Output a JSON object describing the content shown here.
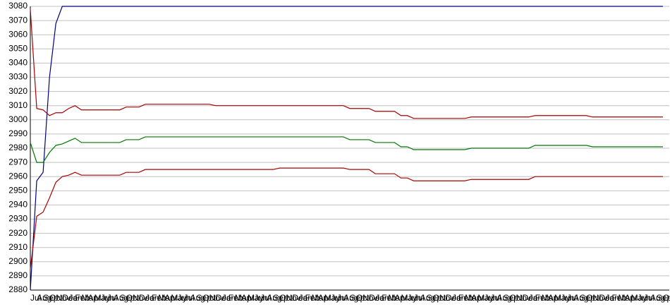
{
  "chart_data": {
    "type": "line",
    "categories": [
      "Jul",
      "Aug",
      "Sep",
      "Oct",
      "Nov",
      "Dec",
      "Jan",
      "Feb",
      "Mar",
      "Apr",
      "May",
      "Jun",
      "Jul",
      "Aug",
      "Sep",
      "Oct",
      "Nov",
      "Dec",
      "Jan",
      "Feb",
      "Mar",
      "Apr",
      "May",
      "Jun",
      "Jul",
      "Aug",
      "Sep",
      "Oct",
      "Nov",
      "Dec",
      "Jan",
      "Feb",
      "Mar",
      "Apr",
      "May",
      "Jun",
      "Jul",
      "Aug",
      "Sep",
      "Oct",
      "Nov",
      "Dec",
      "Jan",
      "Feb",
      "Mar",
      "Apr",
      "May",
      "Jun",
      "Jul",
      "Aug",
      "Sep",
      "Oct",
      "Nov",
      "Dec",
      "Jan",
      "Feb",
      "Mar",
      "Apr",
      "May",
      "Jun",
      "Jul",
      "Aug",
      "Sep",
      "Oct",
      "Nov",
      "Dec",
      "Jan",
      "Feb",
      "Mar",
      "Apr",
      "May",
      "Jun",
      "Jul",
      "Aug",
      "Sep",
      "Oct",
      "Nov",
      "Dec",
      "Jan",
      "Feb",
      "Mar",
      "Apr",
      "May",
      "Jun",
      "Jul",
      "Aug",
      "Sep",
      "Oct",
      "Nov",
      "Dec",
      "Jan",
      "Feb",
      "Mar",
      "Apr",
      "May",
      "Jun",
      "Jul",
      "Aug",
      "Sep",
      "Oct"
    ],
    "series": [
      {
        "color": "#000080",
        "values": [
          2880,
          2957,
          2963,
          3030,
          3068,
          3080,
          3080,
          3080,
          3080,
          3080,
          3080,
          3080,
          3080,
          3080,
          3080,
          3080,
          3080,
          3080,
          3080,
          3080,
          3080,
          3080,
          3080,
          3080,
          3080,
          3080,
          3080,
          3080,
          3080,
          3080,
          3080,
          3080,
          3080,
          3080,
          3080,
          3080,
          3080,
          3080,
          3080,
          3080,
          3080,
          3080,
          3080,
          3080,
          3080,
          3080,
          3080,
          3080,
          3080,
          3080,
          3080,
          3080,
          3080,
          3080,
          3080,
          3080,
          3080,
          3080,
          3080,
          3080,
          3080,
          3080,
          3080,
          3080,
          3080,
          3080,
          3080,
          3080,
          3080,
          3080,
          3080,
          3080,
          3080,
          3080,
          3080,
          3080,
          3080,
          3080,
          3080,
          3080,
          3080,
          3080,
          3080,
          3080,
          3080,
          3080,
          3080,
          3080,
          3080,
          3080,
          3080,
          3080,
          3080,
          3080,
          3080,
          3080,
          3080,
          3080,
          3080,
          3080
        ]
      },
      {
        "color": "#aa0000",
        "values": [
          3078,
          3008,
          3007,
          3003,
          3005,
          3005,
          3008,
          3010,
          3007,
          3007,
          3007,
          3007,
          3007,
          3007,
          3007,
          3009,
          3009,
          3009,
          3011,
          3011,
          3011,
          3011,
          3011,
          3011,
          3011,
          3011,
          3011,
          3011,
          3011,
          3010,
          3010,
          3010,
          3010,
          3010,
          3010,
          3010,
          3010,
          3010,
          3010,
          3010,
          3010,
          3010,
          3010,
          3010,
          3010,
          3010,
          3010,
          3010,
          3010,
          3010,
          3008,
          3008,
          3008,
          3008,
          3006,
          3006,
          3006,
          3006,
          3003,
          3003,
          3001,
          3001,
          3001,
          3001,
          3001,
          3001,
          3001,
          3001,
          3001,
          3002,
          3002,
          3002,
          3002,
          3002,
          3002,
          3002,
          3002,
          3002,
          3002,
          3003,
          3003,
          3003,
          3003,
          3003,
          3003,
          3003,
          3003,
          3003,
          3002,
          3002,
          3002,
          3002,
          3002,
          3002,
          3002,
          3002,
          3002,
          3002,
          3002,
          3002
        ]
      },
      {
        "color": "#007700",
        "values": [
          2984,
          2970,
          2970,
          2977,
          2982,
          2983,
          2985,
          2987,
          2984,
          2984,
          2984,
          2984,
          2984,
          2984,
          2984,
          2986,
          2986,
          2986,
          2988,
          2988,
          2988,
          2988,
          2988,
          2988,
          2988,
          2988,
          2988,
          2988,
          2988,
          2988,
          2988,
          2988,
          2988,
          2988,
          2988,
          2988,
          2988,
          2988,
          2988,
          2988,
          2988,
          2988,
          2988,
          2988,
          2988,
          2988,
          2988,
          2988,
          2988,
          2988,
          2986,
          2986,
          2986,
          2986,
          2984,
          2984,
          2984,
          2984,
          2981,
          2981,
          2979,
          2979,
          2979,
          2979,
          2979,
          2979,
          2979,
          2979,
          2979,
          2980,
          2980,
          2980,
          2980,
          2980,
          2980,
          2980,
          2980,
          2980,
          2980,
          2982,
          2982,
          2982,
          2982,
          2982,
          2982,
          2982,
          2982,
          2982,
          2981,
          2981,
          2981,
          2981,
          2981,
          2981,
          2981,
          2981,
          2981,
          2981,
          2981,
          2981
        ]
      },
      {
        "color": "#aa0000",
        "values": [
          2895,
          2932,
          2935,
          2945,
          2956,
          2960,
          2961,
          2963,
          2961,
          2961,
          2961,
          2961,
          2961,
          2961,
          2961,
          2963,
          2963,
          2963,
          2965,
          2965,
          2965,
          2965,
          2965,
          2965,
          2965,
          2965,
          2965,
          2965,
          2965,
          2965,
          2965,
          2965,
          2965,
          2965,
          2965,
          2965,
          2965,
          2965,
          2965,
          2966,
          2966,
          2966,
          2966,
          2966,
          2966,
          2966,
          2966,
          2966,
          2966,
          2966,
          2965,
          2965,
          2965,
          2965,
          2962,
          2962,
          2962,
          2962,
          2959,
          2959,
          2957,
          2957,
          2957,
          2957,
          2957,
          2957,
          2957,
          2957,
          2957,
          2958,
          2958,
          2958,
          2958,
          2958,
          2958,
          2958,
          2958,
          2958,
          2958,
          2960,
          2960,
          2960,
          2960,
          2960,
          2960,
          2960,
          2960,
          2960,
          2960,
          2960,
          2960,
          2960,
          2960,
          2960,
          2960,
          2960,
          2960,
          2960,
          2960,
          2960
        ]
      }
    ],
    "ylim": [
      2880,
      3080
    ],
    "yticks": [
      2880,
      2890,
      2900,
      2910,
      2920,
      2930,
      2940,
      2950,
      2960,
      2970,
      2980,
      2990,
      3000,
      3010,
      3020,
      3030,
      3040,
      3050,
      3060,
      3070,
      3080
    ],
    "grid": true
  }
}
